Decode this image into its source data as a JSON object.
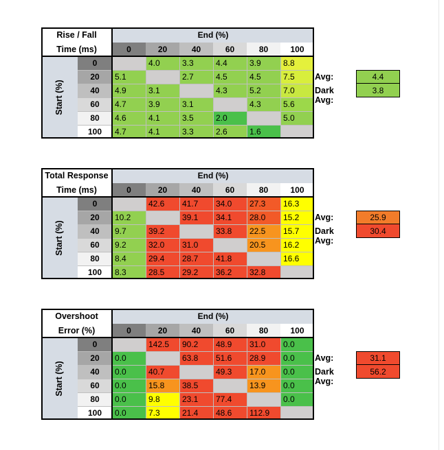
{
  "chart_data": [
    {
      "type": "table",
      "title": "Rise / Fall Time (ms)",
      "title_lines": [
        "Rise / Fall",
        "Time (ms)"
      ],
      "col_header": "End (%)",
      "row_header": "Start (%)",
      "columns": [
        "0",
        "20",
        "40",
        "60",
        "80",
        "100"
      ],
      "rows": [
        "0",
        "20",
        "40",
        "60",
        "80",
        "100"
      ],
      "values": [
        [
          null,
          4.0,
          3.3,
          4.4,
          3.9,
          8.8
        ],
        [
          5.1,
          null,
          2.7,
          4.5,
          4.5,
          7.5
        ],
        [
          4.9,
          3.1,
          null,
          4.3,
          5.2,
          7.0
        ],
        [
          4.7,
          3.9,
          3.1,
          null,
          4.3,
          5.6
        ],
        [
          4.6,
          4.1,
          3.5,
          2.0,
          null,
          5.0
        ],
        [
          4.7,
          4.1,
          3.3,
          2.6,
          1.6,
          null
        ]
      ],
      "colors": [
        [
          null,
          "#92d050",
          "#92d050",
          "#92d050",
          "#92d050",
          "#e4f03c"
        ],
        [
          "#92d050",
          null,
          "#92d050",
          "#92d050",
          "#92d050",
          "#d8ee3c"
        ],
        [
          "#92d050",
          "#92d050",
          null,
          "#92d050",
          "#92d050",
          "#c8e840"
        ],
        [
          "#92d050",
          "#92d050",
          "#92d050",
          null,
          "#92d050",
          "#9cd84a"
        ],
        [
          "#92d050",
          "#92d050",
          "#92d050",
          "#4ac04a",
          null,
          "#92d050"
        ],
        [
          "#92d050",
          "#92d050",
          "#92d050",
          "#92d050",
          "#4ac04a",
          null
        ]
      ],
      "summary": [
        {
          "label": "Avg:",
          "value": "4.4",
          "color": "#92d050"
        },
        {
          "label": "Dark Avg:",
          "value": "3.8",
          "color": "#92d050"
        }
      ]
    },
    {
      "type": "table",
      "title": "Total Response Time (ms)",
      "title_lines": [
        "Total Response",
        "Time (ms)"
      ],
      "col_header": "End (%)",
      "row_header": "Start (%)",
      "columns": [
        "0",
        "20",
        "40",
        "60",
        "80",
        "100"
      ],
      "rows": [
        "0",
        "20",
        "40",
        "60",
        "80",
        "100"
      ],
      "values": [
        [
          null,
          42.6,
          41.7,
          34.0,
          27.3,
          16.3
        ],
        [
          10.2,
          null,
          39.1,
          34.1,
          28.0,
          15.2
        ],
        [
          9.7,
          39.2,
          null,
          33.8,
          22.5,
          15.7
        ],
        [
          9.2,
          32.0,
          31.0,
          null,
          20.5,
          16.2
        ],
        [
          8.4,
          29.4,
          28.7,
          41.8,
          null,
          16.6
        ],
        [
          8.3,
          28.5,
          29.2,
          36.2,
          32.8,
          null
        ]
      ],
      "colors": [
        [
          null,
          "#f04a2e",
          "#f04a2e",
          "#f04a2e",
          "#f25a28",
          "#ffff00"
        ],
        [
          "#92d050",
          null,
          "#f04a2e",
          "#f04a2e",
          "#f25a28",
          "#ffff00"
        ],
        [
          "#92d050",
          "#f04a2e",
          null,
          "#f04a2e",
          "#f7941e",
          "#ffff00"
        ],
        [
          "#92d050",
          "#f04a2e",
          "#f04a2e",
          null,
          "#f7941e",
          "#ffff00"
        ],
        [
          "#92d050",
          "#f04a2e",
          "#f04a2e",
          "#f04a2e",
          null,
          "#ffff00"
        ],
        [
          "#92d050",
          "#f04a2e",
          "#f04a2e",
          "#f04a2e",
          "#f04a2e",
          null
        ]
      ],
      "summary": [
        {
          "label": "Avg:",
          "value": "25.9",
          "color": "#f27c2a"
        },
        {
          "label": "Dark Avg:",
          "value": "30.4",
          "color": "#f04a2e"
        }
      ]
    },
    {
      "type": "table",
      "title": "Overshoot Error (%)",
      "title_lines": [
        "Overshoot",
        "Error (%)"
      ],
      "col_header": "End (%)",
      "row_header": "Start (%)",
      "columns": [
        "0",
        "20",
        "40",
        "60",
        "80",
        "100"
      ],
      "rows": [
        "0",
        "20",
        "40",
        "60",
        "80",
        "100"
      ],
      "values": [
        [
          null,
          142.5,
          90.2,
          48.9,
          31.0,
          0.0
        ],
        [
          0.0,
          null,
          63.8,
          51.6,
          28.9,
          0.0
        ],
        [
          0.0,
          40.7,
          null,
          49.3,
          17.0,
          0.0
        ],
        [
          0.0,
          15.8,
          38.5,
          null,
          13.9,
          0.0
        ],
        [
          0.0,
          9.8,
          23.1,
          77.4,
          null,
          0.0
        ],
        [
          0.0,
          7.3,
          21.4,
          48.6,
          112.9,
          null
        ]
      ],
      "colors": [
        [
          null,
          "#f04a2e",
          "#f04a2e",
          "#f04a2e",
          "#f04a2e",
          "#4ac04a"
        ],
        [
          "#4ac04a",
          null,
          "#f04a2e",
          "#f04a2e",
          "#f04a2e",
          "#4ac04a"
        ],
        [
          "#4ac04a",
          "#f04a2e",
          null,
          "#f04a2e",
          "#f7941e",
          "#4ac04a"
        ],
        [
          "#4ac04a",
          "#f7941e",
          "#f04a2e",
          null,
          "#f7941e",
          "#4ac04a"
        ],
        [
          "#4ac04a",
          "#ffff00",
          "#f04a2e",
          "#f04a2e",
          null,
          "#4ac04a"
        ],
        [
          "#4ac04a",
          "#ffff00",
          "#f04a2e",
          "#f04a2e",
          "#f04a2e",
          null
        ]
      ],
      "summary": [
        {
          "label": "Avg:",
          "value": "31.1",
          "color": "#f04a2e"
        },
        {
          "label": "Dark Avg:",
          "value": "56.2",
          "color": "#f04a2e"
        }
      ]
    }
  ],
  "style": {
    "empty_cell_color": "#d0cece",
    "header_fill": "#d6dce4",
    "col_header_fills": [
      "#7f7f7f",
      "#a6a6a6",
      "#bfbfbf",
      "#d9d9d9",
      "#f2f2f2",
      "#ffffff"
    ]
  }
}
